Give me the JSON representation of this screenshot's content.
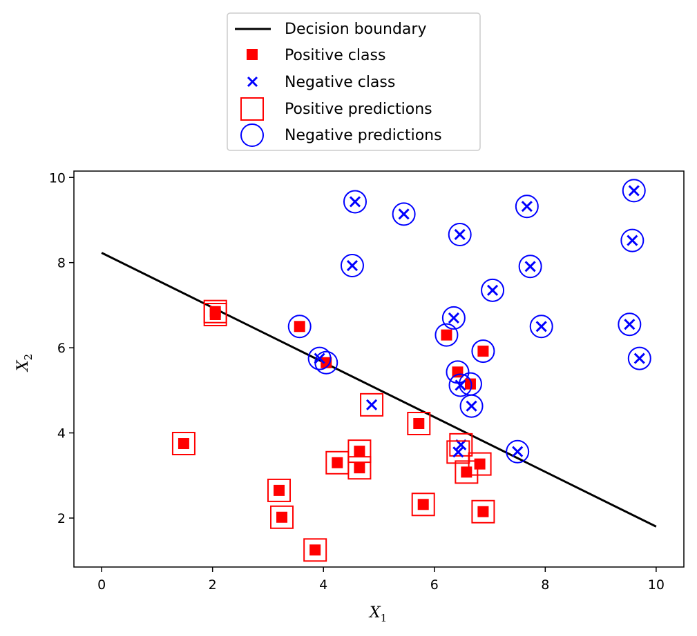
{
  "chart_data": {
    "type": "scatter",
    "xlabel": "X1",
    "ylabel": "X2",
    "xlim": [
      -0.5,
      10.5
    ],
    "ylim": [
      0.85,
      10.15
    ],
    "xticks": [
      0,
      2,
      4,
      6,
      8,
      10
    ],
    "yticks": [
      2,
      4,
      6,
      8,
      10
    ],
    "grid": false,
    "legend_position": "top-center",
    "legend": [
      "Decision boundary",
      "Positive class",
      "Negative class",
      "Positive predictions",
      "Negative predictions"
    ],
    "colors": {
      "positive": "#ff0000",
      "negative": "#0000ff",
      "boundary": "#000000"
    },
    "decision_boundary": {
      "x": [
        0,
        10
      ],
      "y": [
        8.23,
        1.8
      ]
    },
    "points": [
      {
        "x": 2.05,
        "y": 6.85,
        "cls": "positive",
        "pred": "positive"
      },
      {
        "x": 2.05,
        "y": 6.78,
        "cls": "positive",
        "pred": "positive"
      },
      {
        "x": 3.57,
        "y": 6.5,
        "cls": "positive",
        "pred": "negative"
      },
      {
        "x": 4.05,
        "y": 5.65,
        "cls": "positive",
        "pred": "negative"
      },
      {
        "x": 1.48,
        "y": 3.75,
        "cls": "positive",
        "pred": "positive"
      },
      {
        "x": 3.2,
        "y": 2.65,
        "cls": "positive",
        "pred": "positive"
      },
      {
        "x": 3.25,
        "y": 2.02,
        "cls": "positive",
        "pred": "positive"
      },
      {
        "x": 3.85,
        "y": 1.25,
        "cls": "positive",
        "pred": "positive"
      },
      {
        "x": 4.25,
        "y": 3.3,
        "cls": "positive",
        "pred": "positive"
      },
      {
        "x": 4.65,
        "y": 3.57,
        "cls": "positive",
        "pred": "positive"
      },
      {
        "x": 4.65,
        "y": 3.18,
        "cls": "positive",
        "pred": "positive"
      },
      {
        "x": 5.72,
        "y": 4.22,
        "cls": "positive",
        "pred": "positive"
      },
      {
        "x": 5.8,
        "y": 2.32,
        "cls": "positive",
        "pred": "positive"
      },
      {
        "x": 6.22,
        "y": 6.3,
        "cls": "positive",
        "pred": "negative"
      },
      {
        "x": 6.42,
        "y": 5.43,
        "cls": "positive",
        "pred": "negative"
      },
      {
        "x": 6.65,
        "y": 5.15,
        "cls": "positive",
        "pred": "negative"
      },
      {
        "x": 6.88,
        "y": 5.92,
        "cls": "positive",
        "pred": "negative"
      },
      {
        "x": 6.58,
        "y": 3.08,
        "cls": "positive",
        "pred": "positive"
      },
      {
        "x": 6.82,
        "y": 3.27,
        "cls": "positive",
        "pred": "positive"
      },
      {
        "x": 6.88,
        "y": 2.15,
        "cls": "positive",
        "pred": "positive"
      },
      {
        "x": 4.57,
        "y": 9.43,
        "cls": "negative",
        "pred": "negative"
      },
      {
        "x": 5.45,
        "y": 9.14,
        "cls": "negative",
        "pred": "negative"
      },
      {
        "x": 4.52,
        "y": 7.93,
        "cls": "negative",
        "pred": "negative"
      },
      {
        "x": 3.93,
        "y": 5.75,
        "cls": "negative",
        "pred": "negative"
      },
      {
        "x": 4.87,
        "y": 4.66,
        "cls": "negative",
        "pred": "positive"
      },
      {
        "x": 6.46,
        "y": 8.66,
        "cls": "negative",
        "pred": "negative"
      },
      {
        "x": 6.35,
        "y": 6.7,
        "cls": "negative",
        "pred": "negative"
      },
      {
        "x": 6.47,
        "y": 5.12,
        "cls": "negative",
        "pred": "negative"
      },
      {
        "x": 6.67,
        "y": 4.63,
        "cls": "negative",
        "pred": "negative"
      },
      {
        "x": 6.48,
        "y": 3.72,
        "cls": "negative",
        "pred": "positive"
      },
      {
        "x": 6.43,
        "y": 3.55,
        "cls": "negative",
        "pred": "positive"
      },
      {
        "x": 7.05,
        "y": 7.35,
        "cls": "negative",
        "pred": "negative"
      },
      {
        "x": 7.5,
        "y": 3.56,
        "cls": "negative",
        "pred": "negative"
      },
      {
        "x": 7.67,
        "y": 9.32,
        "cls": "negative",
        "pred": "negative"
      },
      {
        "x": 7.73,
        "y": 7.91,
        "cls": "negative",
        "pred": "negative"
      },
      {
        "x": 7.93,
        "y": 6.5,
        "cls": "negative",
        "pred": "negative"
      },
      {
        "x": 9.6,
        "y": 9.69,
        "cls": "negative",
        "pred": "negative"
      },
      {
        "x": 9.57,
        "y": 8.52,
        "cls": "negative",
        "pred": "negative"
      },
      {
        "x": 9.52,
        "y": 6.55,
        "cls": "negative",
        "pred": "negative"
      },
      {
        "x": 9.7,
        "y": 5.75,
        "cls": "negative",
        "pred": "negative"
      }
    ]
  }
}
